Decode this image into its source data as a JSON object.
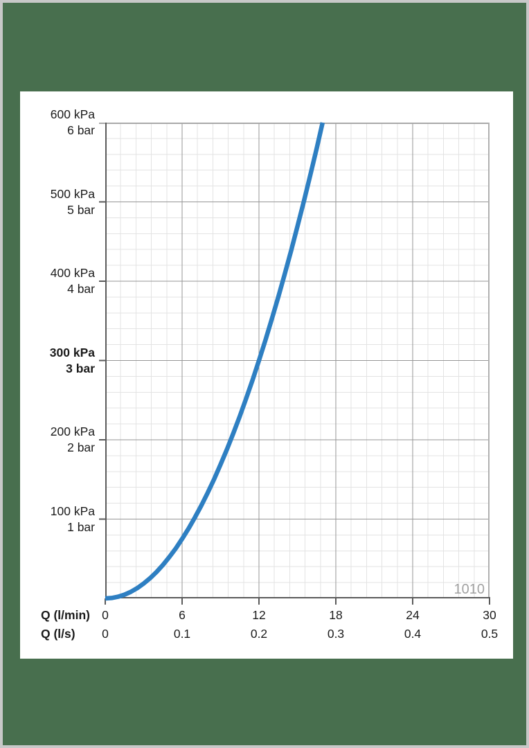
{
  "window": {
    "background_color": "#486f4e",
    "frame_color": "#c8c8c8",
    "card_color": "#ffffff",
    "text_color": "#1b1b1b"
  },
  "chart_data": {
    "type": "line",
    "grid": "on",
    "legend_position": "none",
    "watermark": "1010",
    "colors": {
      "minor_grid": "#e3e3e3",
      "major_grid": "#969696",
      "axis": "#5a5a5a",
      "border_top": "#a8a8a8",
      "border_right": "#b0b0b0",
      "watermark": "#a2a2a2"
    },
    "x_axis": {
      "row1_label": "Q (l/min)",
      "row2_label": "Q (l/s)",
      "min": 0,
      "max": 30,
      "major_step": 6,
      "minor_step": 1.2,
      "major_tick_values": [
        0,
        6,
        12,
        18,
        24,
        30
      ],
      "row1_tick_labels": [
        "0",
        "6",
        "12",
        "18",
        "24",
        "30"
      ],
      "row2_tick_labels": [
        "0",
        "0.1",
        "0.2",
        "0.3",
        "0.4",
        "0.5"
      ]
    },
    "y_axis": {
      "unit_primary": "kPa",
      "unit_secondary": "bar",
      "min": 0,
      "max": 600,
      "major_step": 100,
      "minor_step": 20,
      "labels": [
        {
          "value": 600,
          "kpa": "600 kPa",
          "bar": "6 bar",
          "bold": false
        },
        {
          "value": 500,
          "kpa": "500 kPa",
          "bar": "5 bar",
          "bold": false
        },
        {
          "value": 400,
          "kpa": "400 kPa",
          "bar": "4 bar",
          "bold": false
        },
        {
          "value": 300,
          "kpa": "300 kPa",
          "bar": "3 bar",
          "bold": true
        },
        {
          "value": 200,
          "kpa": "200 kPa",
          "bar": "2 bar",
          "bold": false
        },
        {
          "value": 100,
          "kpa": "100 kPa",
          "bar": "1 bar",
          "bold": false
        }
      ]
    },
    "series": [
      {
        "name": "pressure-loss-curve",
        "color": "#2e7fc2",
        "stroke_width": 6.5,
        "points_q_lmin_p_kpa": [
          [
            0,
            0
          ],
          [
            0.5,
            0.5
          ],
          [
            1,
            2.1
          ],
          [
            1.5,
            4.7
          ],
          [
            2,
            8.3
          ],
          [
            2.5,
            13.0
          ],
          [
            3,
            18.8
          ],
          [
            3.5,
            25.5
          ],
          [
            4,
            33.3
          ],
          [
            4.5,
            42.2
          ],
          [
            5,
            52.1
          ],
          [
            5.5,
            63.0
          ],
          [
            6,
            75
          ],
          [
            6.5,
            88.0
          ],
          [
            7,
            102.1
          ],
          [
            7.5,
            117.2
          ],
          [
            8,
            133.3
          ],
          [
            8.5,
            150.5
          ],
          [
            9,
            168.8
          ],
          [
            9.5,
            188.0
          ],
          [
            10,
            208.3
          ],
          [
            10.5,
            229.7
          ],
          [
            11,
            252.1
          ],
          [
            11.5,
            275.5
          ],
          [
            12,
            300
          ],
          [
            12.5,
            325.5
          ],
          [
            13,
            352.1
          ],
          [
            13.5,
            379.7
          ],
          [
            14,
            408.3
          ],
          [
            14.5,
            438.0
          ],
          [
            15,
            468.8
          ],
          [
            15.5,
            500.5
          ],
          [
            16,
            533.3
          ],
          [
            16.5,
            567.2
          ],
          [
            16.97,
            600
          ]
        ]
      }
    ]
  }
}
